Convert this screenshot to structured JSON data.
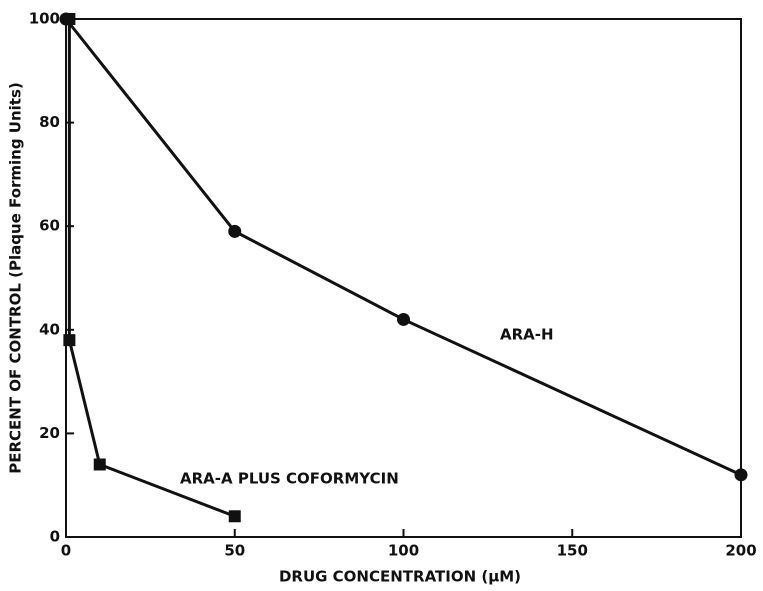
{
  "chart_data": {
    "type": "line",
    "x_label": "DRUG CONCENTRATION (μM)",
    "y_label": "PERCENT OF CONTROL (Plaque Forming Units)",
    "xlim": [
      0,
      200
    ],
    "xticks": [
      0,
      50,
      100,
      150,
      200
    ],
    "ylim": [
      0,
      100
    ],
    "yticks": [
      0,
      20,
      40,
      60,
      80,
      100
    ],
    "series": [
      {
        "name": "ARA-H",
        "color": "#111111",
        "marker": "circle",
        "x": [
          0,
          50,
          100,
          200
        ],
        "values": [
          100,
          59,
          42,
          12
        ]
      },
      {
        "name": "ARA-A PLUS COFORMYCIN",
        "color": "#111111",
        "marker": "square",
        "x": [
          1,
          1,
          10,
          50
        ],
        "values": [
          100,
          38,
          14,
          4
        ]
      }
    ]
  }
}
